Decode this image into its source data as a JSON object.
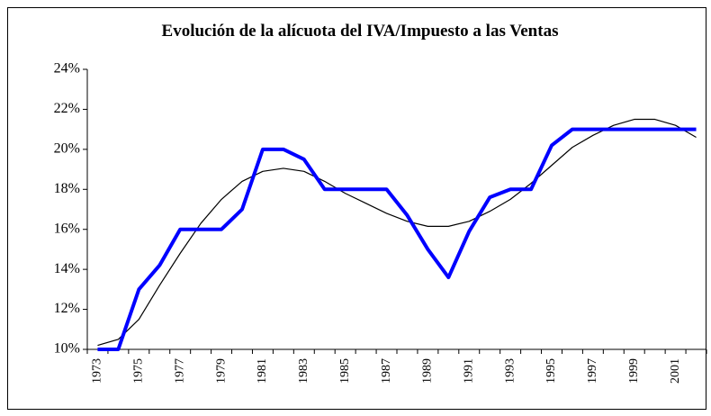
{
  "chart_data": {
    "type": "line",
    "title": "Evolución de la alícuota del IVA/Impuesto a las Ventas",
    "categories": [
      "1973",
      null,
      "1975",
      null,
      "1977",
      null,
      "1979",
      null,
      "1981",
      null,
      "1983",
      null,
      "1985",
      null,
      "1987",
      null,
      "1989",
      null,
      "1991",
      null,
      "1993",
      null,
      "1995",
      null,
      "1997",
      null,
      "1999",
      null,
      "2001",
      null
    ],
    "series": [
      {
        "color": "#0000ff",
        "values": [
          10,
          10,
          13,
          14.2,
          16,
          16,
          16,
          17,
          20,
          20,
          19.5,
          18,
          18,
          18,
          18,
          16.7,
          15,
          13.6,
          15.9,
          17.6,
          18,
          18,
          20.2,
          21,
          21,
          21,
          21,
          21,
          21,
          21
        ]
      },
      {
        "color": "#000000",
        "values": [
          10.2,
          10.5,
          11.5,
          13.2,
          14.8,
          16.3,
          17.5,
          18.4,
          18.9,
          19.05,
          18.9,
          18.4,
          17.8,
          17.3,
          16.8,
          16.4,
          16.15,
          16.15,
          16.4,
          16.9,
          17.5,
          18.3,
          19.2,
          20.1,
          20.7,
          21.2,
          21.5,
          21.5,
          21.2,
          20.6
        ]
      }
    ],
    "ylim": [
      10,
      24
    ],
    "yticks": [
      {
        "value": 10,
        "label": "10%"
      },
      {
        "value": 12,
        "label": "12%"
      },
      {
        "value": 14,
        "label": "14%"
      },
      {
        "value": 16,
        "label": "16%"
      },
      {
        "value": 18,
        "label": "18%"
      },
      {
        "value": 20,
        "label": "20%"
      },
      {
        "value": 22,
        "label": "22%"
      },
      {
        "value": 24,
        "label": "24%"
      }
    ]
  }
}
